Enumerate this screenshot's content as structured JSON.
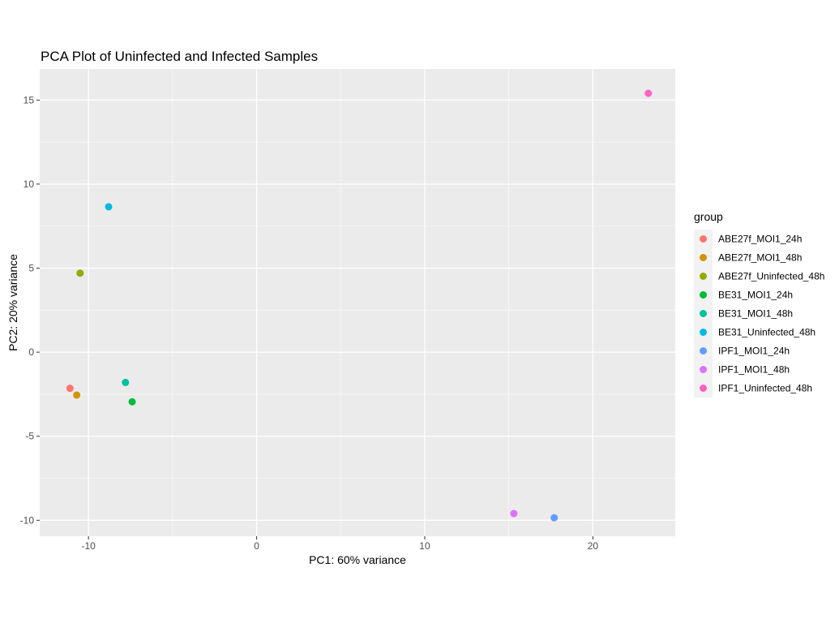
{
  "chart_data": {
    "type": "scatter",
    "title": "PCA Plot of Uninfected and Infected Samples",
    "xlabel": "PC1: 60% variance",
    "ylabel": "PC2: 20% variance",
    "xlim": [
      -12.9,
      24.9
    ],
    "ylim": [
      -10.95,
      16.85
    ],
    "xticks": [
      -10,
      0,
      10,
      20
    ],
    "yticks": [
      -10,
      -5,
      0,
      5,
      10,
      15
    ],
    "xtick_labels": [
      "-10",
      "0",
      "10",
      "20"
    ],
    "ytick_labels": [
      "-10",
      "-5",
      "0",
      "5",
      "10",
      "15"
    ],
    "panel_background": "#ebebeb",
    "grid": true,
    "legend": {
      "title": "group",
      "placement": "right"
    },
    "series": [
      {
        "name": "ABE27f_MOI1_24h",
        "color": "#F8766D",
        "x": [
          -11.1
        ],
        "y": [
          -2.15
        ]
      },
      {
        "name": "ABE27f_MOI1_48h",
        "color": "#D39200",
        "x": [
          -10.7
        ],
        "y": [
          -2.55
        ]
      },
      {
        "name": "ABE27f_Uninfected_48h",
        "color": "#93AA00",
        "x": [
          -10.5
        ],
        "y": [
          4.7
        ]
      },
      {
        "name": "BE31_MOI1_24h",
        "color": "#00BA38",
        "x": [
          -7.4
        ],
        "y": [
          -2.95
        ]
      },
      {
        "name": "BE31_MOI1_48h",
        "color": "#00C19F",
        "x": [
          -7.8
        ],
        "y": [
          -1.8
        ]
      },
      {
        "name": "BE31_Uninfected_48h",
        "color": "#00B9E3",
        "x": [
          -8.8
        ],
        "y": [
          8.65
        ]
      },
      {
        "name": "IPF1_MOI1_24h",
        "color": "#619CFF",
        "x": [
          17.7
        ],
        "y": [
          -9.85
        ]
      },
      {
        "name": "IPF1_MOI1_48h",
        "color": "#DB72FB",
        "x": [
          15.3
        ],
        "y": [
          -9.6
        ]
      },
      {
        "name": "IPF1_Uninfected_48h",
        "color": "#FF61C3",
        "x": [
          23.3
        ],
        "y": [
          15.4
        ]
      }
    ]
  }
}
